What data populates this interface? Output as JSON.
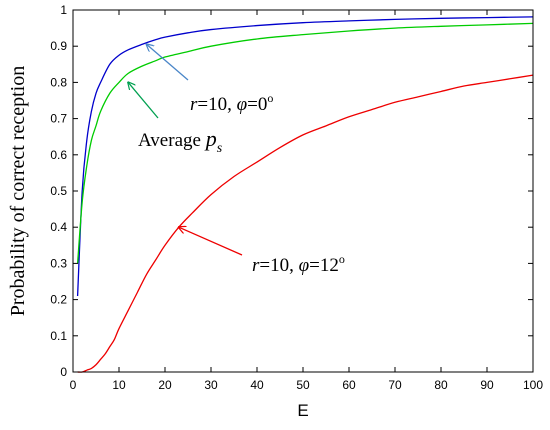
{
  "chart_data": {
    "type": "line",
    "title": "",
    "xlabel": "E",
    "ylabel": "Probability of correct reception",
    "xlim": [
      0,
      100
    ],
    "ylim": [
      0,
      1
    ],
    "xticks": [
      0,
      10,
      20,
      30,
      40,
      50,
      60,
      70,
      80,
      90,
      100
    ],
    "yticks": [
      0,
      0.1,
      0.2,
      0.3,
      0.4,
      0.5,
      0.6,
      0.7,
      0.8,
      0.9,
      1
    ],
    "xtick_labels": [
      "0",
      "10",
      "20",
      "30",
      "40",
      "50",
      "60",
      "70",
      "80",
      "90",
      "100"
    ],
    "ytick_labels": [
      "0",
      "0.1",
      "0.2",
      "0.3",
      "0.4",
      "0.5",
      "0.6",
      "0.7",
      "0.8",
      "0.9",
      "1"
    ],
    "grid": false,
    "series": [
      {
        "color": "#0000cc",
        "x": [
          1,
          2,
          3,
          4,
          5,
          6,
          8,
          10,
          12,
          15,
          18,
          20,
          25,
          30,
          40,
          50,
          60,
          70,
          80,
          90,
          100
        ],
        "y": [
          0.21,
          0.5,
          0.64,
          0.72,
          0.77,
          0.8,
          0.85,
          0.875,
          0.89,
          0.905,
          0.918,
          0.925,
          0.937,
          0.946,
          0.957,
          0.965,
          0.97,
          0.974,
          0.977,
          0.979,
          0.981
        ]
      },
      {
        "color": "#00cc00",
        "x": [
          1,
          2,
          3,
          4,
          5,
          6,
          8,
          10,
          12,
          15,
          18,
          20,
          25,
          30,
          40,
          50,
          60,
          70,
          80,
          90,
          100
        ],
        "y": [
          0.3,
          0.47,
          0.57,
          0.64,
          0.68,
          0.72,
          0.77,
          0.8,
          0.825,
          0.845,
          0.86,
          0.87,
          0.885,
          0.9,
          0.92,
          0.932,
          0.942,
          0.95,
          0.955,
          0.959,
          0.963
        ]
      },
      {
        "color": "#ee0000",
        "x": [
          1,
          2,
          3,
          4,
          5,
          6,
          7,
          8,
          9,
          10,
          12,
          14,
          16,
          18,
          20,
          23,
          26,
          30,
          35,
          40,
          45,
          50,
          55,
          60,
          65,
          70,
          75,
          80,
          85,
          90,
          95,
          100
        ],
        "y": [
          0.0,
          0.0,
          0.005,
          0.01,
          0.02,
          0.035,
          0.05,
          0.07,
          0.09,
          0.12,
          0.17,
          0.22,
          0.27,
          0.31,
          0.35,
          0.4,
          0.44,
          0.49,
          0.54,
          0.58,
          0.62,
          0.655,
          0.68,
          0.705,
          0.725,
          0.745,
          0.76,
          0.775,
          0.79,
          0.8,
          0.81,
          0.82
        ]
      }
    ],
    "annotations": [
      {
        "prefix": "r",
        "eq": "=10, ",
        "var": "φ",
        "suffix": "=0",
        "sup": "o",
        "arrow_color": "#4a86c8",
        "tip": {
          "x": 16,
          "y": 0.905
        }
      },
      {
        "prefix": "Average ",
        "var": "p",
        "sub": "s",
        "arrow_color": "#00a050",
        "tip": {
          "x": 12,
          "y": 0.8
        }
      },
      {
        "prefix": "r",
        "eq": "=10, ",
        "var": "φ",
        "suffix": "=12",
        "sup": "o",
        "arrow_color": "#ee0000",
        "tip": {
          "x": 23,
          "y": 0.4
        }
      }
    ]
  }
}
